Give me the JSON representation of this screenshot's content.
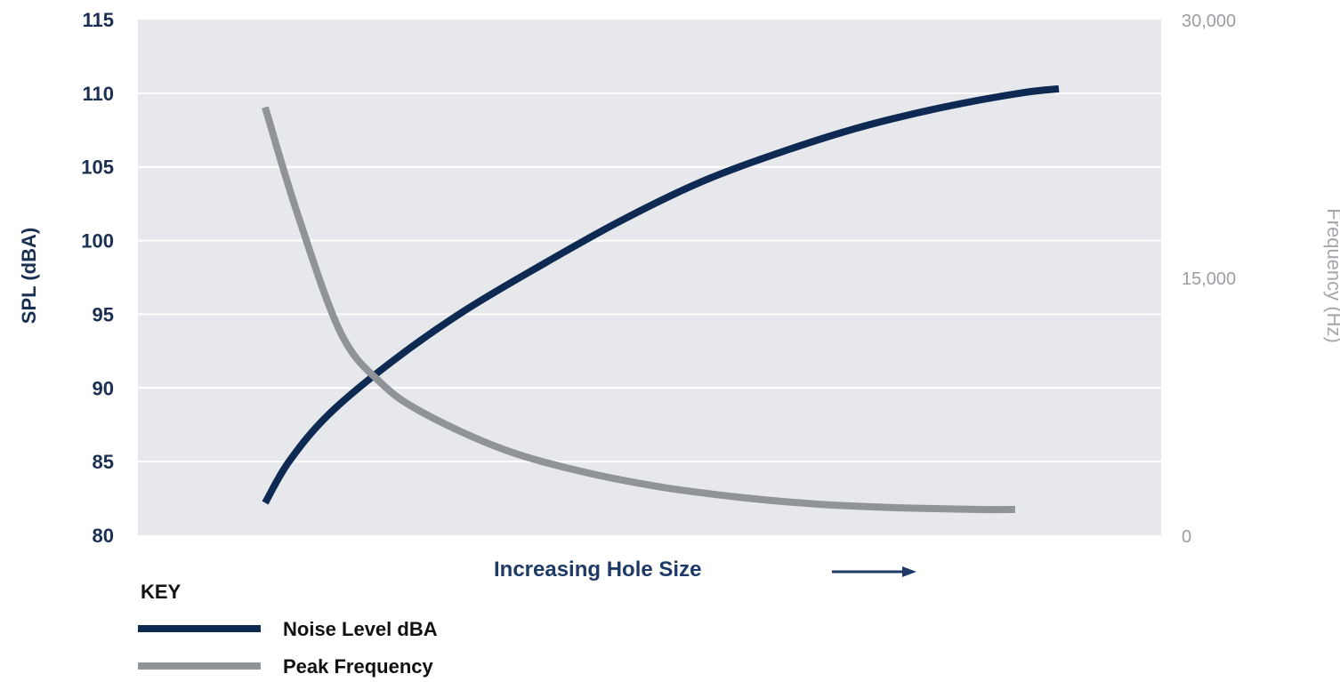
{
  "chart_data": {
    "type": "line",
    "xlabel": "Increasing Hole Size",
    "ylabel_left": "SPL (dBA)",
    "ylabel_right": "Frequency (Hz)",
    "y_left": {
      "ticks": [
        "80",
        "85",
        "90",
        "95",
        "100",
        "105",
        "110",
        "115"
      ],
      "range": [
        80,
        115
      ]
    },
    "y_right": {
      "ticks": [
        "0",
        "15,000",
        "30,000"
      ],
      "range": [
        0,
        30000
      ]
    },
    "x_range": [
      0,
      1
    ],
    "grid": true,
    "legend_title": "KEY",
    "legend_position": "bottom-left",
    "series": [
      {
        "name": "Noise Level dBA",
        "axis": "left",
        "color": "#0f2a52",
        "points": [
          [
            0.0,
            82.2
          ],
          [
            0.03,
            85.0
          ],
          [
            0.08,
            88.2
          ],
          [
            0.16,
            91.8
          ],
          [
            0.25,
            95.2
          ],
          [
            0.35,
            98.4
          ],
          [
            0.45,
            101.4
          ],
          [
            0.55,
            104.0
          ],
          [
            0.65,
            106.0
          ],
          [
            0.75,
            107.7
          ],
          [
            0.85,
            109.0
          ],
          [
            0.95,
            110.0
          ],
          [
            1.0,
            110.3
          ]
        ]
      },
      {
        "name": "Peak Frequency",
        "axis": "right",
        "color": "#909398",
        "points": [
          [
            0.0,
            24900
          ],
          [
            0.04,
            18800
          ],
          [
            0.095,
            11800
          ],
          [
            0.145,
            8900
          ],
          [
            0.2,
            7100
          ],
          [
            0.3,
            5000
          ],
          [
            0.4,
            3700
          ],
          [
            0.5,
            2800
          ],
          [
            0.6,
            2200
          ],
          [
            0.7,
            1800
          ],
          [
            0.8,
            1600
          ],
          [
            0.9,
            1500
          ],
          [
            0.945,
            1500
          ]
        ]
      }
    ],
    "x_arrow_icon": "right-arrow-icon"
  }
}
